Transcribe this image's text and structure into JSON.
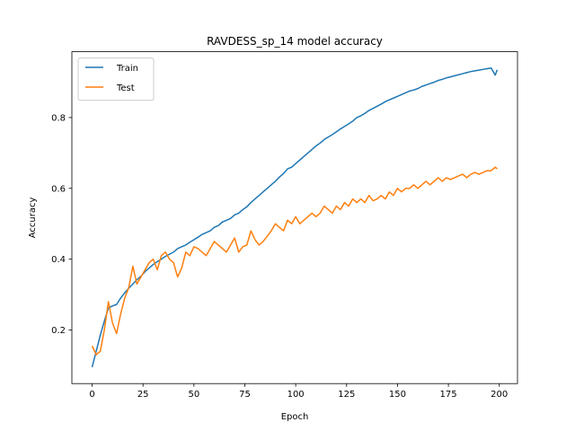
{
  "chart_data": {
    "type": "line",
    "title": "RAVDESS_sp_14 model accuracy",
    "xlabel": "Epoch",
    "ylabel": "Accuracy",
    "xlim": [
      -9.95,
      208.95
    ],
    "ylim": [
      0.0486,
      0.986
    ],
    "xticks": [
      0,
      25,
      50,
      75,
      100,
      125,
      150,
      175,
      200
    ],
    "yticks": [
      0.2,
      0.4,
      0.6,
      0.8
    ],
    "grid": false,
    "legend_position": "top-left",
    "colors": {
      "train": "#1f77b4",
      "test": "#ff7f0e",
      "axes": "#000000"
    },
    "series": [
      {
        "name": "Train",
        "key": "train",
        "points": [
          [
            0,
            0.095
          ],
          [
            2,
            0.14
          ],
          [
            4,
            0.185
          ],
          [
            6,
            0.225
          ],
          [
            8,
            0.262
          ],
          [
            10,
            0.268
          ],
          [
            12,
            0.272
          ],
          [
            14,
            0.29
          ],
          [
            16,
            0.305
          ],
          [
            18,
            0.318
          ],
          [
            20,
            0.33
          ],
          [
            22,
            0.342
          ],
          [
            24,
            0.352
          ],
          [
            26,
            0.365
          ],
          [
            28,
            0.375
          ],
          [
            30,
            0.385
          ],
          [
            32,
            0.393
          ],
          [
            34,
            0.4
          ],
          [
            36,
            0.408
          ],
          [
            38,
            0.414
          ],
          [
            40,
            0.42
          ],
          [
            42,
            0.43
          ],
          [
            44,
            0.435
          ],
          [
            46,
            0.44
          ],
          [
            48,
            0.448
          ],
          [
            50,
            0.455
          ],
          [
            52,
            0.462
          ],
          [
            54,
            0.47
          ],
          [
            56,
            0.475
          ],
          [
            58,
            0.48
          ],
          [
            60,
            0.49
          ],
          [
            62,
            0.495
          ],
          [
            64,
            0.505
          ],
          [
            66,
            0.51
          ],
          [
            68,
            0.515
          ],
          [
            70,
            0.525
          ],
          [
            72,
            0.53
          ],
          [
            74,
            0.54
          ],
          [
            76,
            0.548
          ],
          [
            78,
            0.56
          ],
          [
            80,
            0.57
          ],
          [
            82,
            0.58
          ],
          [
            84,
            0.59
          ],
          [
            86,
            0.6
          ],
          [
            88,
            0.61
          ],
          [
            90,
            0.62
          ],
          [
            92,
            0.632
          ],
          [
            94,
            0.642
          ],
          [
            96,
            0.655
          ],
          [
            98,
            0.66
          ],
          [
            100,
            0.67
          ],
          [
            102,
            0.68
          ],
          [
            104,
            0.69
          ],
          [
            106,
            0.7
          ],
          [
            108,
            0.71
          ],
          [
            110,
            0.72
          ],
          [
            112,
            0.728
          ],
          [
            114,
            0.738
          ],
          [
            116,
            0.745
          ],
          [
            118,
            0.752
          ],
          [
            120,
            0.76
          ],
          [
            122,
            0.768
          ],
          [
            124,
            0.775
          ],
          [
            126,
            0.782
          ],
          [
            128,
            0.79
          ],
          [
            130,
            0.8
          ],
          [
            132,
            0.805
          ],
          [
            134,
            0.812
          ],
          [
            136,
            0.82
          ],
          [
            138,
            0.826
          ],
          [
            140,
            0.832
          ],
          [
            142,
            0.838
          ],
          [
            144,
            0.845
          ],
          [
            146,
            0.85
          ],
          [
            148,
            0.855
          ],
          [
            150,
            0.86
          ],
          [
            152,
            0.865
          ],
          [
            154,
            0.87
          ],
          [
            156,
            0.875
          ],
          [
            158,
            0.878
          ],
          [
            160,
            0.882
          ],
          [
            162,
            0.888
          ],
          [
            164,
            0.892
          ],
          [
            166,
            0.896
          ],
          [
            168,
            0.9
          ],
          [
            170,
            0.905
          ],
          [
            172,
            0.908
          ],
          [
            174,
            0.912
          ],
          [
            176,
            0.915
          ],
          [
            178,
            0.918
          ],
          [
            180,
            0.921
          ],
          [
            182,
            0.924
          ],
          [
            184,
            0.927
          ],
          [
            186,
            0.93
          ],
          [
            188,
            0.932
          ],
          [
            190,
            0.934
          ],
          [
            192,
            0.936
          ],
          [
            194,
            0.938
          ],
          [
            196,
            0.94
          ],
          [
            198,
            0.92
          ],
          [
            199,
            0.935
          ]
        ]
      },
      {
        "name": "Test",
        "key": "test",
        "points": [
          [
            0,
            0.155
          ],
          [
            2,
            0.13
          ],
          [
            4,
            0.14
          ],
          [
            6,
            0.2
          ],
          [
            8,
            0.28
          ],
          [
            10,
            0.22
          ],
          [
            12,
            0.19
          ],
          [
            14,
            0.245
          ],
          [
            16,
            0.29
          ],
          [
            18,
            0.32
          ],
          [
            20,
            0.38
          ],
          [
            22,
            0.33
          ],
          [
            24,
            0.35
          ],
          [
            26,
            0.37
          ],
          [
            28,
            0.39
          ],
          [
            30,
            0.4
          ],
          [
            32,
            0.37
          ],
          [
            34,
            0.41
          ],
          [
            36,
            0.42
          ],
          [
            38,
            0.4
          ],
          [
            40,
            0.39
          ],
          [
            42,
            0.35
          ],
          [
            44,
            0.375
          ],
          [
            46,
            0.42
          ],
          [
            48,
            0.41
          ],
          [
            50,
            0.435
          ],
          [
            52,
            0.43
          ],
          [
            54,
            0.42
          ],
          [
            56,
            0.41
          ],
          [
            58,
            0.43
          ],
          [
            60,
            0.45
          ],
          [
            62,
            0.44
          ],
          [
            64,
            0.43
          ],
          [
            66,
            0.42
          ],
          [
            68,
            0.44
          ],
          [
            70,
            0.46
          ],
          [
            72,
            0.42
          ],
          [
            74,
            0.435
          ],
          [
            76,
            0.44
          ],
          [
            78,
            0.48
          ],
          [
            80,
            0.455
          ],
          [
            82,
            0.44
          ],
          [
            84,
            0.45
          ],
          [
            86,
            0.465
          ],
          [
            88,
            0.48
          ],
          [
            90,
            0.5
          ],
          [
            92,
            0.49
          ],
          [
            94,
            0.48
          ],
          [
            96,
            0.51
          ],
          [
            98,
            0.5
          ],
          [
            100,
            0.52
          ],
          [
            102,
            0.5
          ],
          [
            104,
            0.51
          ],
          [
            106,
            0.52
          ],
          [
            108,
            0.53
          ],
          [
            110,
            0.52
          ],
          [
            112,
            0.53
          ],
          [
            114,
            0.55
          ],
          [
            116,
            0.54
          ],
          [
            118,
            0.53
          ],
          [
            120,
            0.55
          ],
          [
            122,
            0.54
          ],
          [
            124,
            0.56
          ],
          [
            126,
            0.55
          ],
          [
            128,
            0.57
          ],
          [
            130,
            0.56
          ],
          [
            132,
            0.57
          ],
          [
            134,
            0.56
          ],
          [
            136,
            0.58
          ],
          [
            138,
            0.565
          ],
          [
            140,
            0.57
          ],
          [
            142,
            0.58
          ],
          [
            144,
            0.57
          ],
          [
            146,
            0.59
          ],
          [
            148,
            0.58
          ],
          [
            150,
            0.6
          ],
          [
            152,
            0.59
          ],
          [
            154,
            0.6
          ],
          [
            156,
            0.6
          ],
          [
            158,
            0.61
          ],
          [
            160,
            0.6
          ],
          [
            162,
            0.61
          ],
          [
            164,
            0.62
          ],
          [
            166,
            0.61
          ],
          [
            168,
            0.62
          ],
          [
            170,
            0.63
          ],
          [
            172,
            0.62
          ],
          [
            174,
            0.63
          ],
          [
            176,
            0.625
          ],
          [
            178,
            0.63
          ],
          [
            180,
            0.635
          ],
          [
            182,
            0.64
          ],
          [
            184,
            0.63
          ],
          [
            186,
            0.64
          ],
          [
            188,
            0.645
          ],
          [
            190,
            0.64
          ],
          [
            192,
            0.645
          ],
          [
            194,
            0.65
          ],
          [
            196,
            0.65
          ],
          [
            198,
            0.66
          ],
          [
            199,
            0.655
          ]
        ]
      }
    ]
  }
}
